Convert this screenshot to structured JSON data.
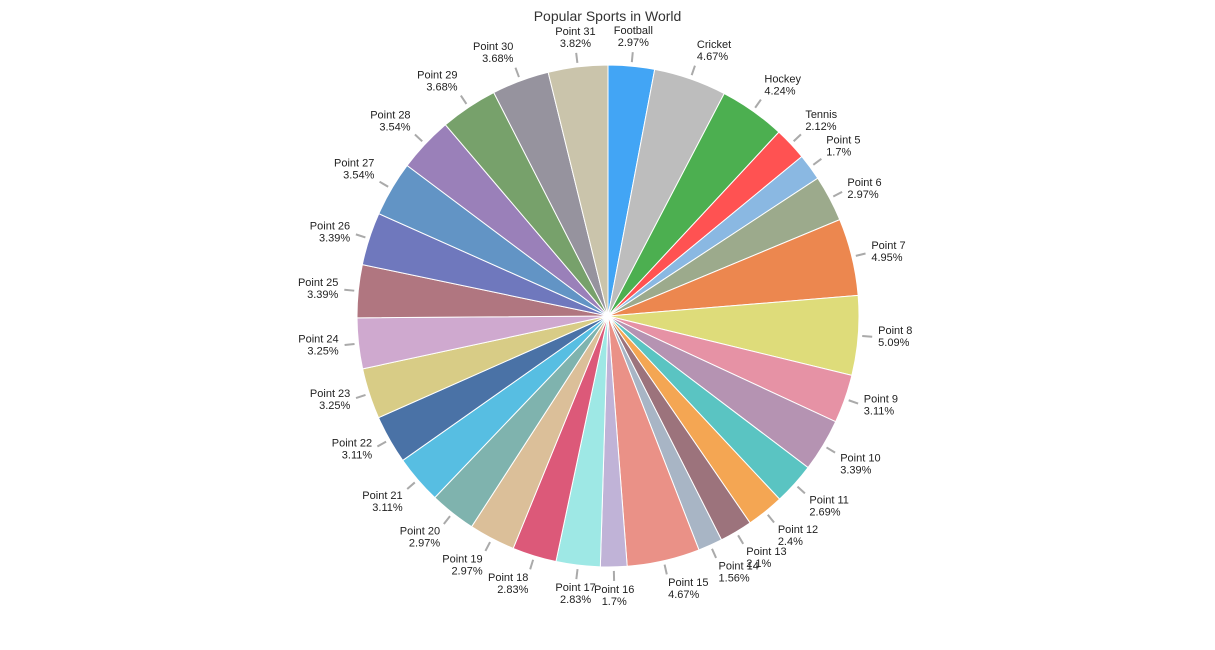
{
  "chart_data": {
    "type": "pie",
    "title": "Popular Sports in World",
    "start_angle_deg": 0,
    "direction": "clockwise",
    "labels": [
      "Football",
      "Cricket",
      "Hockey",
      "Tennis",
      "Point 5",
      "Point 6",
      "Point 7",
      "Point 8",
      "Point 9",
      "Point 10",
      "Point 11",
      "Point 12",
      "Point 13",
      "Point 14",
      "Point 15",
      "Point 16",
      "Point 17",
      "Point 18",
      "Point 19",
      "Point 20",
      "Point 21",
      "Point 22",
      "Point 23",
      "Point 24",
      "Point 25",
      "Point 26",
      "Point 27",
      "Point 28",
      "Point 29",
      "Point 30",
      "Point 31"
    ],
    "values": [
      2.97,
      4.67,
      4.24,
      2.12,
      1.7,
      2.97,
      4.95,
      5.09,
      3.11,
      3.39,
      2.69,
      2.4,
      2.1,
      1.56,
      4.67,
      1.7,
      2.83,
      2.83,
      2.97,
      2.97,
      3.11,
      3.11,
      3.25,
      3.25,
      3.39,
      3.39,
      3.54,
      3.54,
      3.68,
      3.68,
      3.82
    ],
    "value_labels": [
      "2.97%",
      "4.67%",
      "4.24%",
      "2.12%",
      "1.7%",
      "2.97%",
      "4.95%",
      "5.09%",
      "3.11%",
      "3.39%",
      "2.69%",
      "2.4%",
      "2.1%",
      "1.56%",
      "4.67%",
      "1.7%",
      "2.83%",
      "2.83%",
      "2.97%",
      "2.97%",
      "3.11%",
      "3.11%",
      "3.25%",
      "3.25%",
      "3.39%",
      "3.39%",
      "3.54%",
      "3.54%",
      "3.68%",
      "3.68%",
      "3.82%"
    ],
    "colors": [
      "#42a5f5",
      "#bdbdbd",
      "#4caf50",
      "#ff5252",
      "#8ab8e2",
      "#9caa8c",
      "#ec874f",
      "#dedc7a",
      "#e692a5",
      "#b593b2",
      "#5ac4c2",
      "#f4a653",
      "#9c737c",
      "#a8b5c5",
      "#ea9187",
      "#c0b3d7",
      "#9ee8e5",
      "#dc5979",
      "#dbbf99",
      "#7fb3ae",
      "#57bee2",
      "#4a72a6",
      "#d8cc86",
      "#cfa9cf",
      "#b07680",
      "#6f78bd",
      "#6294c5",
      "#9a80b9",
      "#77a16b",
      "#96939e",
      "#cac4ab"
    ],
    "legend": "none",
    "data_labels": "outside with leader lines"
  }
}
